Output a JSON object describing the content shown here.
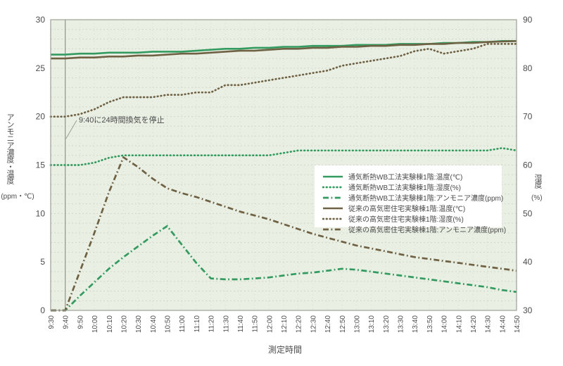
{
  "chart_data": {
    "type": "line",
    "title": "",
    "xlabel": "測定時間",
    "ylabel_left": "アンモニア濃度・温度",
    "ylabel_left_unit": "(ppm・℃)",
    "ylabel_right": "湿度",
    "ylabel_right_unit": "(%)",
    "grid": true,
    "legend_position": "middle-right",
    "left_axis": {
      "min": 0,
      "max": 30,
      "ticks": [
        30,
        25,
        20,
        15,
        10,
        5,
        0
      ]
    },
    "right_axis": {
      "min": 30,
      "max": 90,
      "ticks": [
        90,
        80,
        70,
        60,
        50,
        40,
        30
      ]
    },
    "annotation": {
      "text": "9:40に24時間換気を停止",
      "time": "9:40"
    },
    "colors": {
      "wb": "#339b60",
      "conventional": "#6f6144",
      "plot_bg": "#e9efe3",
      "grid": "#d2d7ca",
      "axis": "#9ba095",
      "text": "#4c4c4c",
      "vline": "#90948c",
      "legend_bg": "#ffffff"
    },
    "x": [
      "9:30",
      "9:40",
      "9:50",
      "10:00",
      "10:10",
      "10:20",
      "10:30",
      "10:40",
      "10:50",
      "11:00",
      "11:10",
      "11:20",
      "11:30",
      "11:40",
      "11:50",
      "12:00",
      "12:10",
      "12:20",
      "12:30",
      "12:40",
      "12:50",
      "13:00",
      "13:10",
      "13:20",
      "13:30",
      "13:40",
      "13:50",
      "14:00",
      "14:10",
      "14:20",
      "14:30",
      "14:40",
      "14:50"
    ],
    "series": [
      {
        "name": "通気断熱WB工法実験棟1階:温度(℃)",
        "color_key": "wb",
        "style": "solid",
        "axis": "left",
        "values": [
          26.4,
          26.4,
          26.5,
          26.5,
          26.6,
          26.6,
          26.6,
          26.7,
          26.7,
          26.7,
          26.8,
          26.9,
          27.0,
          27.0,
          27.1,
          27.1,
          27.2,
          27.2,
          27.3,
          27.3,
          27.3,
          27.4,
          27.4,
          27.4,
          27.5,
          27.5,
          27.5,
          27.6,
          27.6,
          27.7,
          27.7,
          27.8,
          27.8
        ]
      },
      {
        "name": "通気断熱WB工法実験棟1階:湿度(%)",
        "color_key": "wb",
        "style": "dotted",
        "axis": "right",
        "values": [
          60,
          60,
          60,
          60.5,
          61.5,
          62,
          62,
          62,
          62,
          62,
          62,
          62,
          62,
          62,
          62,
          62,
          62.5,
          63,
          63,
          63,
          63,
          63,
          63,
          63,
          63,
          63,
          63,
          63,
          63,
          63,
          63,
          63.5,
          63
        ]
      },
      {
        "name": "通気断熱WB工法実験棟1階:アンモニア濃度(ppm)",
        "color_key": "wb",
        "style": "dashdot",
        "axis": "left",
        "values": [
          0,
          0,
          1.5,
          2.9,
          4.3,
          5.5,
          6.6,
          7.7,
          8.7,
          6.8,
          4.9,
          3.3,
          3.2,
          3.2,
          3.3,
          3.4,
          3.6,
          3.8,
          3.9,
          4.1,
          4.3,
          4.2,
          4.0,
          3.8,
          3.6,
          3.4,
          3.2,
          3.0,
          2.8,
          2.6,
          2.4,
          2.1,
          1.9
        ]
      },
      {
        "name": "従来の高気密住宅実験棟1階:温度(℃)",
        "color_key": "conventional",
        "style": "solid",
        "axis": "left",
        "values": [
          26.0,
          26.0,
          26.1,
          26.1,
          26.2,
          26.2,
          26.3,
          26.3,
          26.4,
          26.5,
          26.5,
          26.6,
          26.7,
          26.8,
          26.8,
          26.9,
          27.0,
          27.0,
          27.1,
          27.1,
          27.2,
          27.2,
          27.3,
          27.3,
          27.4,
          27.4,
          27.5,
          27.5,
          27.6,
          27.6,
          27.7,
          27.75,
          27.8
        ]
      },
      {
        "name": "従来の高気密住宅実験棟1階:湿度(%)",
        "color_key": "conventional",
        "style": "dotted",
        "axis": "right",
        "values": [
          70,
          70,
          70.5,
          71.5,
          73,
          74,
          74,
          74,
          74.5,
          74.5,
          75,
          75,
          76.5,
          76.5,
          77,
          77.5,
          78,
          78.5,
          79,
          79.5,
          80.5,
          81,
          81.5,
          82,
          82.5,
          83.5,
          84,
          83,
          83.5,
          84,
          85,
          85,
          85
        ]
      },
      {
        "name": "従来の高気密住宅実験棟1階:アンモニア濃度(ppm)",
        "color_key": "conventional",
        "style": "dashdot",
        "axis": "left",
        "values": [
          0,
          0,
          4,
          8,
          12.2,
          15.8,
          14.8,
          13.6,
          12.6,
          12.1,
          11.7,
          11.2,
          10.7,
          10.2,
          9.8,
          9.4,
          8.9,
          8.4,
          7.9,
          7.5,
          7.1,
          6.7,
          6.4,
          6.1,
          5.8,
          5.5,
          5.3,
          5.1,
          4.9,
          4.7,
          4.5,
          4.3,
          4.1
        ]
      }
    ]
  }
}
